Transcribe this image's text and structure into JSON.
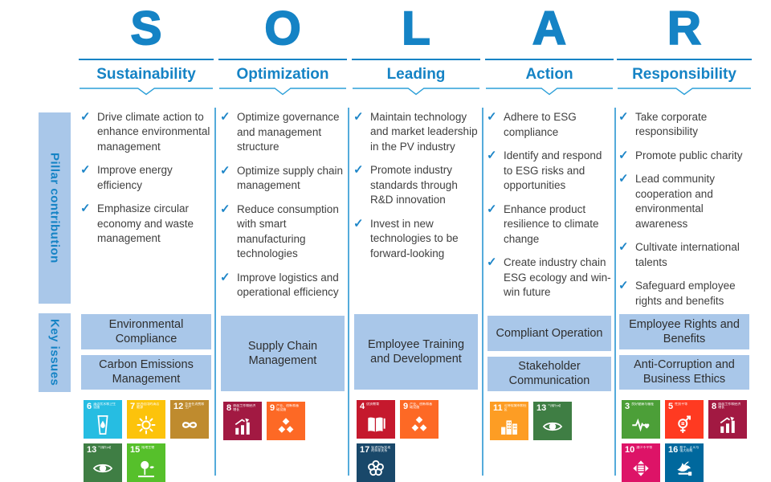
{
  "colors": {
    "accent_blue": "#1583C5",
    "light_blue_fill": "#A9C7E9",
    "divider_blue": "#54ABDB",
    "body_text": "#3F3F3F"
  },
  "sidebar": {
    "pillar_label": "Pillar contribution",
    "key_issues_label": "Key issues"
  },
  "columns": [
    {
      "letter": "S",
      "title": "Sustainability",
      "bullets": [
        "Drive climate action to enhance environmental management",
        "Improve energy efficiency",
        "Emphasize circular economy and waste management"
      ],
      "key_issues": [
        "Environmental Compliance",
        "Carbon Emissions Management"
      ],
      "sdgs": [
        {
          "number": "6",
          "title": "清洁饮水和卫生设施",
          "color": "#26BDE2",
          "glyph": "water-drop"
        },
        {
          "number": "7",
          "title": "经济适用的清洁能源",
          "color": "#FCC30B",
          "glyph": "sun"
        },
        {
          "number": "12",
          "title": "负责任消费和生产",
          "color": "#BF8B2E",
          "glyph": "infinity"
        },
        {
          "number": "13",
          "title": "气候行动",
          "color": "#3F7E44",
          "glyph": "eye-globe"
        },
        {
          "number": "15",
          "title": "陆地生物",
          "color": "#56C02B",
          "glyph": "tree"
        }
      ]
    },
    {
      "letter": "O",
      "title": "Optimization",
      "bullets": [
        "Optimize governance and management structure",
        "Optimize supply chain management",
        "Reduce consumption with smart manufacturing technologies",
        "Improve logistics and operational efficiency"
      ],
      "key_issues": [
        "Supply Chain Management"
      ],
      "sdgs": [
        {
          "number": "8",
          "title": "体面工作和经济增长",
          "color": "#A21942",
          "glyph": "growth-chart"
        },
        {
          "number": "9",
          "title": "产业、创新和基础设施",
          "color": "#FD6925",
          "glyph": "cubes"
        }
      ]
    },
    {
      "letter": "L",
      "title": "Leading",
      "bullets": [
        "Maintain technology and market leadership in the PV industry",
        "Promote industry standards through R&D innovation",
        "Invest in new technologies to be forward-looking"
      ],
      "key_issues": [
        "Employee Training and Development"
      ],
      "sdgs": [
        {
          "number": "4",
          "title": "优质教育",
          "color": "#C5192D",
          "glyph": "book"
        },
        {
          "number": "9",
          "title": "产业、创新和基础设施",
          "color": "#FD6925",
          "glyph": "cubes"
        },
        {
          "number": "17",
          "title": "促进目标实现的伙伴关系",
          "color": "#19486A",
          "glyph": "circle-flower"
        }
      ]
    },
    {
      "letter": "A",
      "title": "Action",
      "bullets": [
        "Adhere to ESG compliance",
        "Identify and respond to ESG risks and opportunities",
        "Enhance product resilience to climate change",
        "Create industry chain ESG ecology and win-win future"
      ],
      "key_issues": [
        "Compliant Operation",
        "Stakeholder Communication"
      ],
      "sdgs": [
        {
          "number": "11",
          "title": "可持续城市和社区",
          "color": "#FD9D24",
          "glyph": "city"
        },
        {
          "number": "13",
          "title": "气候行动",
          "color": "#3F7E44",
          "glyph": "eye-globe"
        }
      ]
    },
    {
      "letter": "R",
      "title": "Responsibility",
      "bullets": [
        "Take corporate responsibility",
        "Promote public charity",
        "Lead community cooperation and environmental awareness",
        "Cultivate international talents",
        "Safeguard employee rights and benefits"
      ],
      "key_issues": [
        "Employee Rights and Benefits",
        "Anti-Corruption and Business Ethics"
      ],
      "sdgs": [
        {
          "number": "3",
          "title": "良好健康与福祉",
          "color": "#4C9F38",
          "glyph": "heartbeat"
        },
        {
          "number": "5",
          "title": "性别平等",
          "color": "#FF3A21",
          "glyph": "gender-equality"
        },
        {
          "number": "8",
          "title": "体面工作和经济增长",
          "color": "#A21942",
          "glyph": "growth-chart"
        },
        {
          "number": "10",
          "title": "减少不平等",
          "color": "#DD1367",
          "glyph": "equality-arrows"
        },
        {
          "number": "16",
          "title": "和平、正义与强大机构",
          "color": "#00689D",
          "glyph": "dove-peace"
        }
      ]
    }
  ]
}
